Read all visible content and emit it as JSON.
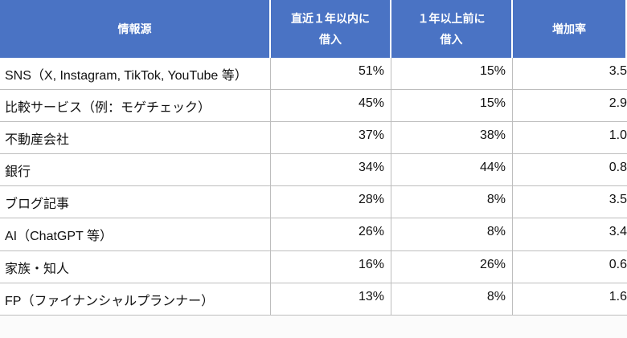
{
  "table": {
    "header": [
      [
        "情報源"
      ],
      [
        "直近１年以内に",
        "借入"
      ],
      [
        "１年以上前に",
        "借入"
      ],
      [
        "増加率"
      ]
    ],
    "rows": [
      [
        "SNS（X, Instagram, TikTok, YouTube 等）",
        "51%",
        "15%",
        "3.5"
      ],
      [
        "比較サービス（例：モゲチェック）",
        "45%",
        "15%",
        "2.9"
      ],
      [
        "不動産会社",
        "37%",
        "38%",
        "1.0"
      ],
      [
        "銀行",
        "34%",
        "44%",
        "0.8"
      ],
      [
        "ブログ記事",
        "28%",
        "8%",
        "3.5"
      ],
      [
        "AI（ChatGPT 等）",
        "26%",
        "8%",
        "3.4"
      ],
      [
        "家族・知人",
        "16%",
        "26%",
        "0.6"
      ],
      [
        "FP（ファイナンシャルプランナー）",
        "13%",
        "8%",
        "1.6"
      ]
    ]
  }
}
